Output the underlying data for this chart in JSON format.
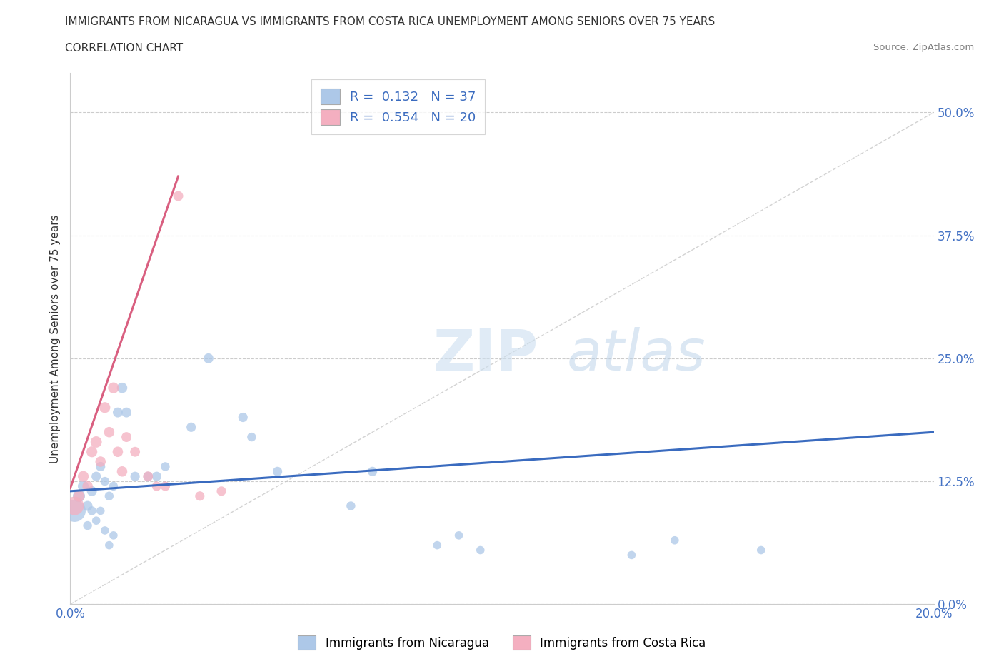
{
  "title_line1": "IMMIGRANTS FROM NICARAGUA VS IMMIGRANTS FROM COSTA RICA UNEMPLOYMENT AMONG SENIORS OVER 75 YEARS",
  "title_line2": "CORRELATION CHART",
  "source_text": "Source: ZipAtlas.com",
  "ylabel": "Unemployment Among Seniors over 75 years",
  "xlim": [
    0.0,
    0.2
  ],
  "ylim": [
    0.0,
    0.54
  ],
  "yticks": [
    0.0,
    0.125,
    0.25,
    0.375,
    0.5
  ],
  "ytick_labels": [
    "0.0%",
    "12.5%",
    "25.0%",
    "37.5%",
    "50.0%"
  ],
  "xticks": [
    0.0,
    0.05,
    0.1,
    0.15,
    0.2
  ],
  "xtick_labels": [
    "0.0%",
    "",
    "",
    "",
    "20.0%"
  ],
  "blue_R": 0.132,
  "blue_N": 37,
  "pink_R": 0.554,
  "pink_N": 20,
  "blue_color": "#adc8e8",
  "pink_color": "#f4afc0",
  "blue_line_color": "#3a6bbf",
  "pink_line_color": "#d95f80",
  "legend_blue_label": "Immigrants from Nicaragua",
  "legend_pink_label": "Immigrants from Costa Rica",
  "blue_scatter_x": [
    0.001,
    0.002,
    0.003,
    0.004,
    0.004,
    0.005,
    0.005,
    0.006,
    0.006,
    0.007,
    0.007,
    0.008,
    0.008,
    0.009,
    0.009,
    0.01,
    0.01,
    0.011,
    0.012,
    0.013,
    0.015,
    0.018,
    0.02,
    0.022,
    0.028,
    0.032,
    0.04,
    0.042,
    0.048,
    0.065,
    0.07,
    0.085,
    0.09,
    0.095,
    0.13,
    0.14,
    0.16
  ],
  "blue_scatter_y": [
    0.095,
    0.11,
    0.12,
    0.1,
    0.08,
    0.115,
    0.095,
    0.13,
    0.085,
    0.14,
    0.095,
    0.125,
    0.075,
    0.11,
    0.06,
    0.12,
    0.07,
    0.195,
    0.22,
    0.195,
    0.13,
    0.13,
    0.13,
    0.14,
    0.18,
    0.25,
    0.19,
    0.17,
    0.135,
    0.1,
    0.135,
    0.06,
    0.07,
    0.055,
    0.05,
    0.065,
    0.055
  ],
  "blue_scatter_sizes": [
    500,
    150,
    120,
    100,
    80,
    100,
    80,
    90,
    70,
    90,
    70,
    80,
    70,
    80,
    70,
    80,
    70,
    100,
    110,
    100,
    90,
    90,
    90,
    80,
    90,
    100,
    90,
    80,
    90,
    80,
    90,
    70,
    70,
    70,
    70,
    70,
    70
  ],
  "pink_scatter_x": [
    0.001,
    0.002,
    0.003,
    0.004,
    0.005,
    0.006,
    0.007,
    0.008,
    0.009,
    0.01,
    0.011,
    0.012,
    0.013,
    0.015,
    0.018,
    0.02,
    0.022,
    0.025,
    0.03,
    0.035
  ],
  "pink_scatter_y": [
    0.1,
    0.11,
    0.13,
    0.12,
    0.155,
    0.165,
    0.145,
    0.2,
    0.175,
    0.22,
    0.155,
    0.135,
    0.17,
    0.155,
    0.13,
    0.12,
    0.12,
    0.415,
    0.11,
    0.115
  ],
  "pink_scatter_sizes": [
    350,
    130,
    120,
    110,
    120,
    130,
    110,
    120,
    110,
    120,
    110,
    110,
    100,
    100,
    100,
    90,
    90,
    100,
    90,
    90
  ],
  "background_color": "#ffffff",
  "grid_color": "#cccccc",
  "title_color": "#333333",
  "axis_label_color": "#333333",
  "tick_color": "#4472c4",
  "ref_line_color": "#c8c8c8"
}
